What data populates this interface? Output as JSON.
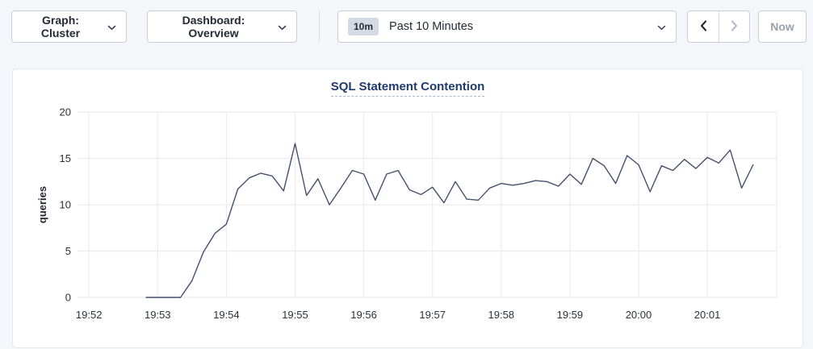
{
  "toolbar": {
    "graph_dropdown": {
      "label": "Graph: Cluster"
    },
    "dashboard_dropdown": {
      "label": "Dashboard: Overview"
    },
    "time_selector": {
      "badge": "10m",
      "label": "Past 10 Minutes"
    },
    "now_label": "Now"
  },
  "chart_data": {
    "type": "line",
    "title": "SQL Statement Contention",
    "xlabel": "",
    "ylabel": "queries",
    "ylim": [
      0,
      20
    ],
    "y_ticks": [
      0,
      5,
      10,
      15,
      20
    ],
    "x_domain": [
      "19:51:50",
      "20:01:50"
    ],
    "x_tick_labels": [
      "19:52",
      "19:53",
      "19:54",
      "19:55",
      "19:56",
      "19:57",
      "19:58",
      "19:59",
      "20:00",
      "20:01"
    ],
    "interval_seconds": 10,
    "grid": true,
    "legend": "none",
    "line_color": "#44506E",
    "grid_color": "#ececec",
    "series": [
      {
        "name": "queries",
        "start_time": "19:52:50",
        "values": [
          0,
          0,
          0,
          0,
          1.8,
          4.9,
          6.9,
          7.9,
          11.7,
          12.9,
          13.4,
          13.1,
          11.5,
          16.6,
          11.0,
          12.8,
          10.0,
          11.8,
          13.7,
          13.3,
          10.5,
          13.3,
          13.7,
          11.6,
          11.1,
          11.9,
          10.2,
          12.5,
          10.6,
          10.5,
          11.8,
          12.3,
          12.1,
          12.3,
          12.6,
          12.5,
          12.0,
          13.3,
          12.2,
          15.0,
          14.2,
          12.3,
          15.3,
          14.3,
          11.4,
          14.2,
          13.7,
          14.9,
          13.9,
          15.1,
          14.5,
          15.9,
          11.8,
          14.3
        ]
      }
    ]
  }
}
